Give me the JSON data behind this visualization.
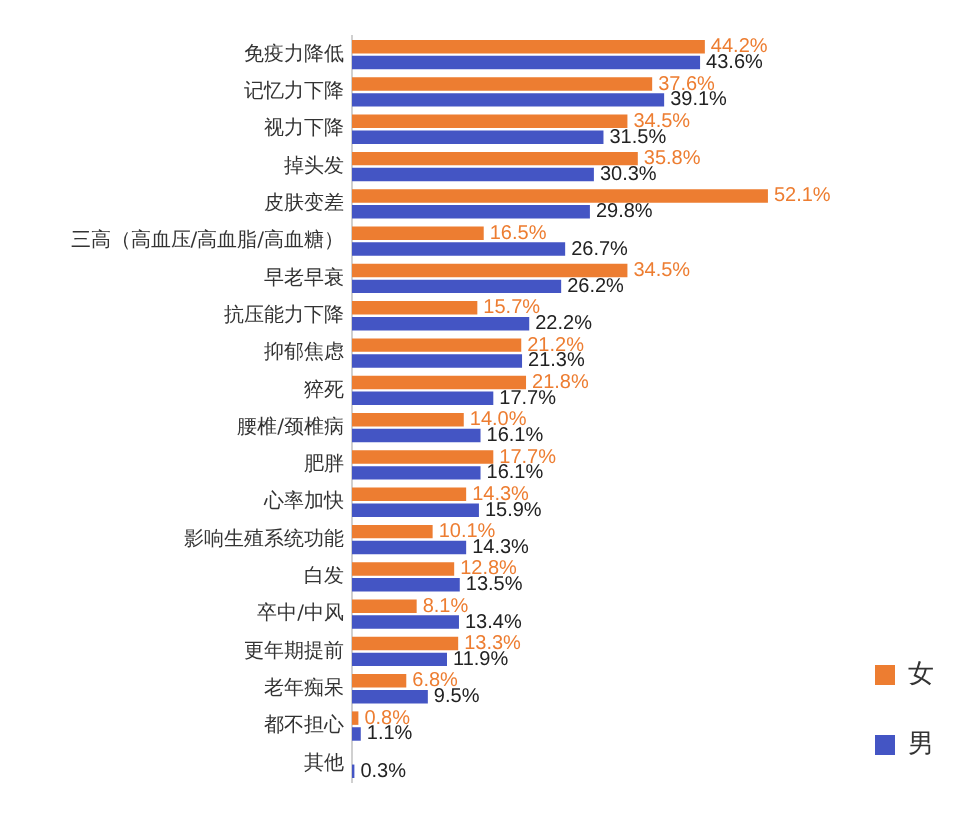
{
  "chart_data": {
    "type": "bar",
    "orientation": "horizontal",
    "categories": [
      "免疫力降低",
      "记忆力下降",
      "视力下降",
      "掉头发",
      "皮肤变差",
      "三高（高血压/高血脂/高血糖）",
      "早老早衰",
      "抗压能力下降",
      "抑郁焦虑",
      "猝死",
      "腰椎/颈椎病",
      "肥胖",
      "心率加快",
      "影响生殖系统功能",
      "白发",
      "卒中/中风",
      "更年期提前",
      "老年痴呆",
      "都不担心",
      "其他"
    ],
    "series": [
      {
        "name": "女",
        "color": "#ed7d31",
        "values": [
          44.2,
          37.6,
          34.5,
          35.8,
          52.1,
          16.5,
          34.5,
          15.7,
          21.2,
          21.8,
          14.0,
          17.7,
          14.3,
          10.1,
          12.8,
          8.1,
          13.3,
          6.8,
          0.8,
          null
        ],
        "value_labels": [
          "44.2%",
          "37.6%",
          "34.5%",
          "35.8%",
          "52.1%",
          "16.5%",
          "34.5%",
          "15.7%",
          "21.2%",
          "21.8%",
          "14.0%",
          "17.7%",
          "14.3%",
          "10.1%",
          "12.8%",
          "8.1%",
          "13.3%",
          "6.8%",
          "0.8%",
          null
        ]
      },
      {
        "name": "男",
        "color": "#4455c4",
        "values": [
          43.6,
          39.1,
          31.5,
          30.3,
          29.8,
          26.7,
          26.2,
          22.2,
          21.3,
          17.7,
          16.1,
          16.1,
          15.9,
          14.3,
          13.5,
          13.4,
          11.9,
          9.5,
          1.1,
          0.3
        ],
        "value_labels": [
          "43.6%",
          "39.1%",
          "31.5%",
          "30.3%",
          "29.8%",
          "26.7%",
          "26.2%",
          "22.2%",
          "21.3%",
          "17.7%",
          "16.1%",
          "16.1%",
          "15.9%",
          "14.3%",
          "13.5%",
          "13.4%",
          "11.9%",
          "9.5%",
          "1.1%",
          "0.3%"
        ]
      }
    ],
    "legend": "right",
    "grid": false,
    "tick_labels": "y"
  }
}
